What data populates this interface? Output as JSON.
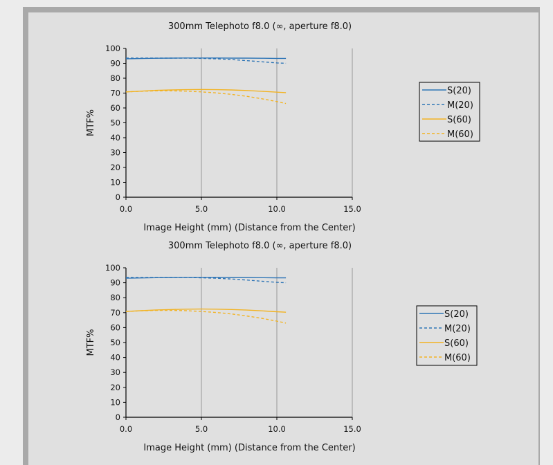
{
  "colors": {
    "blue": "#2e75b6",
    "orange": "#f2b323",
    "grid": "#999999",
    "background": "#e0e0e0",
    "frame": "#a9a9a9"
  },
  "chart_data": [
    {
      "type": "line",
      "title": "300mm Telephoto f8.0 (∞, aperture f8.0)",
      "xlabel": "Image Height (mm) (Distance from the Center)",
      "ylabel": "MTF%",
      "xlim": [
        0,
        15
      ],
      "ylim": [
        0,
        100
      ],
      "xticks": [
        "0.0",
        "5.0",
        "10.0",
        "15.0"
      ],
      "yticks": [
        "0",
        "10",
        "20",
        "30",
        "40",
        "50",
        "60",
        "70",
        "80",
        "90",
        "100"
      ],
      "grid": "vertical",
      "legend_position": "right",
      "x": [
        0,
        1,
        2,
        3,
        4,
        5,
        6,
        7,
        8,
        9,
        10,
        10.6
      ],
      "series": [
        {
          "name": "S(20)",
          "color": "#2e75b6",
          "dash": false,
          "values": [
            93,
            93.2,
            93.4,
            93.5,
            93.6,
            93.6,
            93.6,
            93.5,
            93.5,
            93.4,
            93.3,
            93.3
          ]
        },
        {
          "name": "M(20)",
          "color": "#2e75b6",
          "dash": true,
          "values": [
            93.5,
            93.5,
            93.5,
            93.5,
            93.5,
            93.3,
            93,
            92.5,
            91.8,
            91,
            90.3,
            90
          ]
        },
        {
          "name": "S(60)",
          "color": "#f2b323",
          "dash": false,
          "values": [
            70.8,
            71.3,
            71.8,
            72.1,
            72.3,
            72.4,
            72.3,
            72.1,
            71.7,
            71.2,
            70.6,
            70.3
          ]
        },
        {
          "name": "M(60)",
          "color": "#f2b323",
          "dash": true,
          "values": [
            70.8,
            71.2,
            71.5,
            71.5,
            71.3,
            70.8,
            70.1,
            69.1,
            67.8,
            66.2,
            64.3,
            63
          ]
        }
      ]
    },
    {
      "type": "line",
      "title": "300mm Telephoto f8.0 (∞, aperture f8.0)",
      "xlabel": "Image Height (mm) (Distance from the Center)",
      "ylabel": "MTF%",
      "xlim": [
        0,
        15
      ],
      "ylim": [
        0,
        100
      ],
      "xticks": [
        "0.0",
        "5.0",
        "10.0",
        "15.0"
      ],
      "yticks": [
        "0",
        "10",
        "20",
        "30",
        "40",
        "50",
        "60",
        "70",
        "80",
        "90",
        "100"
      ],
      "grid": "vertical",
      "legend_position": "right",
      "x": [
        0,
        1,
        2,
        3,
        4,
        5,
        6,
        7,
        8,
        9,
        10,
        10.6
      ],
      "series": [
        {
          "name": "S(20)",
          "color": "#2e75b6",
          "dash": false,
          "values": [
            93,
            93.2,
            93.4,
            93.5,
            93.6,
            93.6,
            93.6,
            93.5,
            93.5,
            93.4,
            93.3,
            93.3
          ]
        },
        {
          "name": "M(20)",
          "color": "#2e75b6",
          "dash": true,
          "values": [
            93.5,
            93.5,
            93.5,
            93.5,
            93.5,
            93.3,
            93,
            92.5,
            91.8,
            91,
            90.3,
            90
          ]
        },
        {
          "name": "S(60)",
          "color": "#f2b323",
          "dash": false,
          "values": [
            70.8,
            71.3,
            71.8,
            72.1,
            72.3,
            72.4,
            72.3,
            72.1,
            71.7,
            71.2,
            70.6,
            70.3
          ]
        },
        {
          "name": "M(60)",
          "color": "#f2b323",
          "dash": true,
          "values": [
            70.8,
            71.2,
            71.5,
            71.5,
            71.3,
            70.8,
            70.1,
            69.1,
            67.8,
            66.2,
            64.3,
            63
          ]
        }
      ]
    }
  ]
}
